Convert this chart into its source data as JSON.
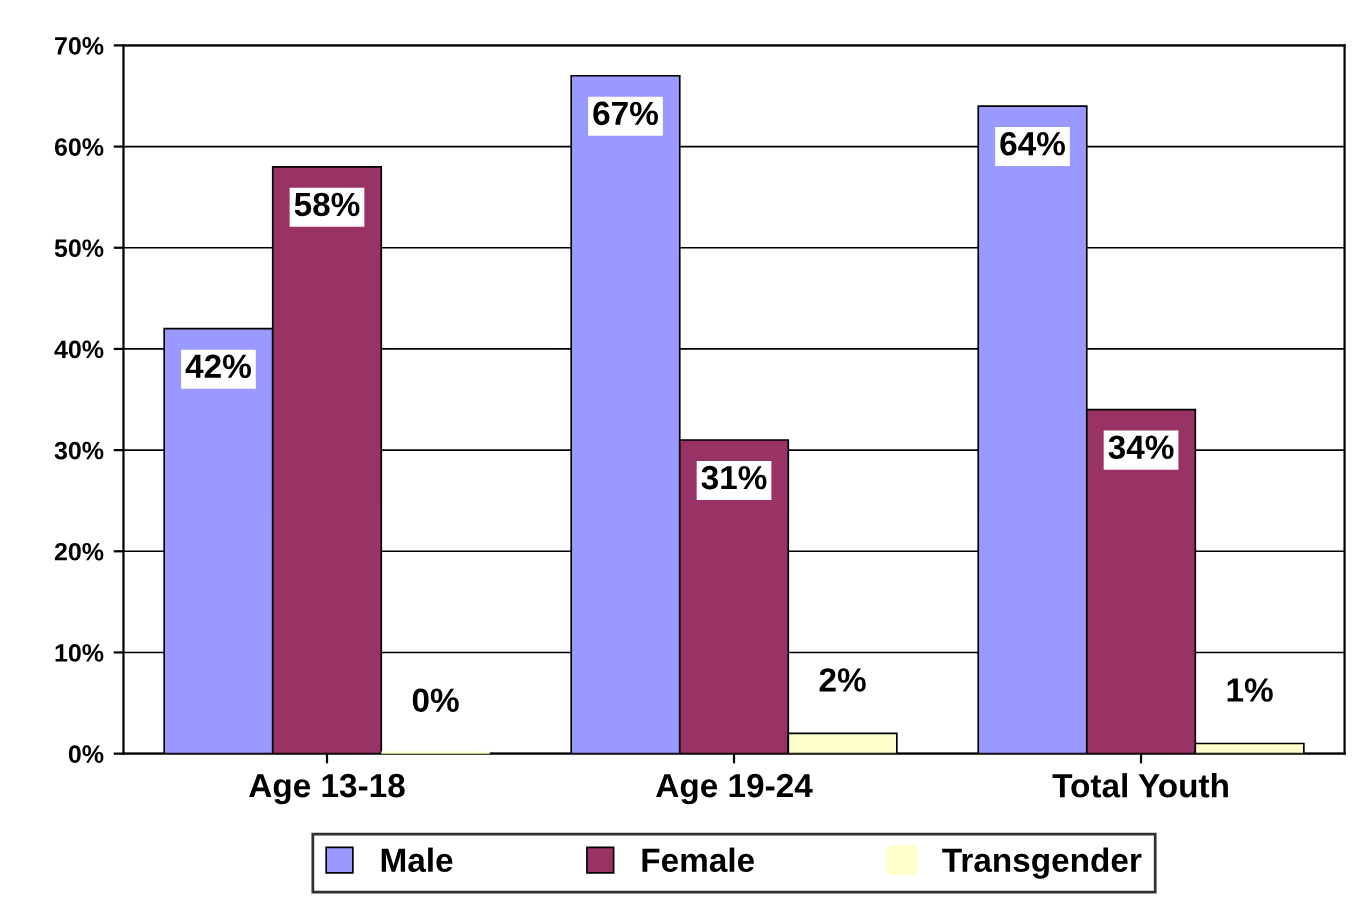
{
  "chart_data": {
    "type": "bar",
    "categories": [
      "Age 13-18",
      "Age 19-24",
      "Total Youth"
    ],
    "series": [
      {
        "name": "Male",
        "color": "#9999ff",
        "values": [
          42,
          67,
          64
        ],
        "value_labels": [
          "42%",
          "67%",
          "64%"
        ]
      },
      {
        "name": "Female",
        "color": "#993366",
        "values": [
          58,
          31,
          34
        ],
        "value_labels": [
          "58%",
          "31%",
          "34%"
        ]
      },
      {
        "name": "Transgender",
        "color": "#ffffcc",
        "values": [
          0,
          2,
          1
        ],
        "value_labels": [
          "0%",
          "2%",
          "1%"
        ]
      }
    ],
    "ylim": [
      0,
      70
    ],
    "yticks": [
      {
        "value": 0,
        "label": "0%"
      },
      {
        "value": 10,
        "label": "10%"
      },
      {
        "value": 20,
        "label": "20%"
      },
      {
        "value": 30,
        "label": "30%"
      },
      {
        "value": 40,
        "label": "40%"
      },
      {
        "value": 50,
        "label": "50%"
      },
      {
        "value": 60,
        "label": "60%"
      },
      {
        "value": 70,
        "label": "70%"
      }
    ],
    "grid": "y",
    "legend": "bottom"
  }
}
